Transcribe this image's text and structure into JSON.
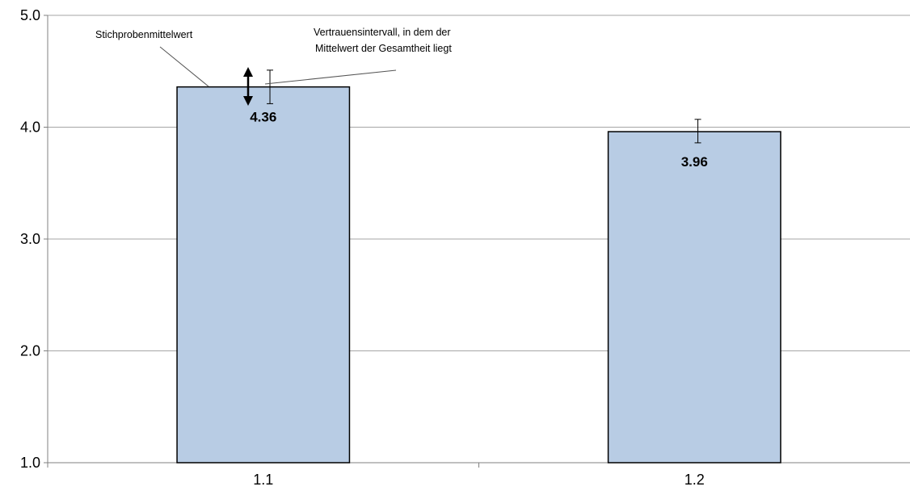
{
  "chart_data": {
    "type": "bar",
    "categories": [
      "1.1",
      "1.2"
    ],
    "values": [
      4.36,
      3.96
    ],
    "value_labels": [
      "4.36",
      "3.96"
    ],
    "error_bars": [
      {
        "low": 4.21,
        "high": 4.51
      },
      {
        "low": 3.86,
        "high": 4.07
      }
    ],
    "ylim": [
      1.0,
      5.0
    ],
    "yticks": [
      1.0,
      2.0,
      3.0,
      4.0,
      5.0
    ],
    "ytick_labels": [
      "1.0",
      "2.0",
      "3.0",
      "4.0",
      "5.0"
    ],
    "title": "",
    "xlabel": "",
    "ylabel": "",
    "grid": true,
    "legend": "none",
    "annotations": [
      {
        "text": "Stichprobenmittelwert"
      },
      {
        "lines": [
          "Vertrauensintervall, in dem der",
          "Mittelwert der Gesamtheit liegt"
        ]
      }
    ],
    "colors": {
      "bar_fill": "#b8cce4",
      "bar_stroke": "#000000",
      "grid": "#a6a6a6",
      "axis": "#808080"
    }
  }
}
